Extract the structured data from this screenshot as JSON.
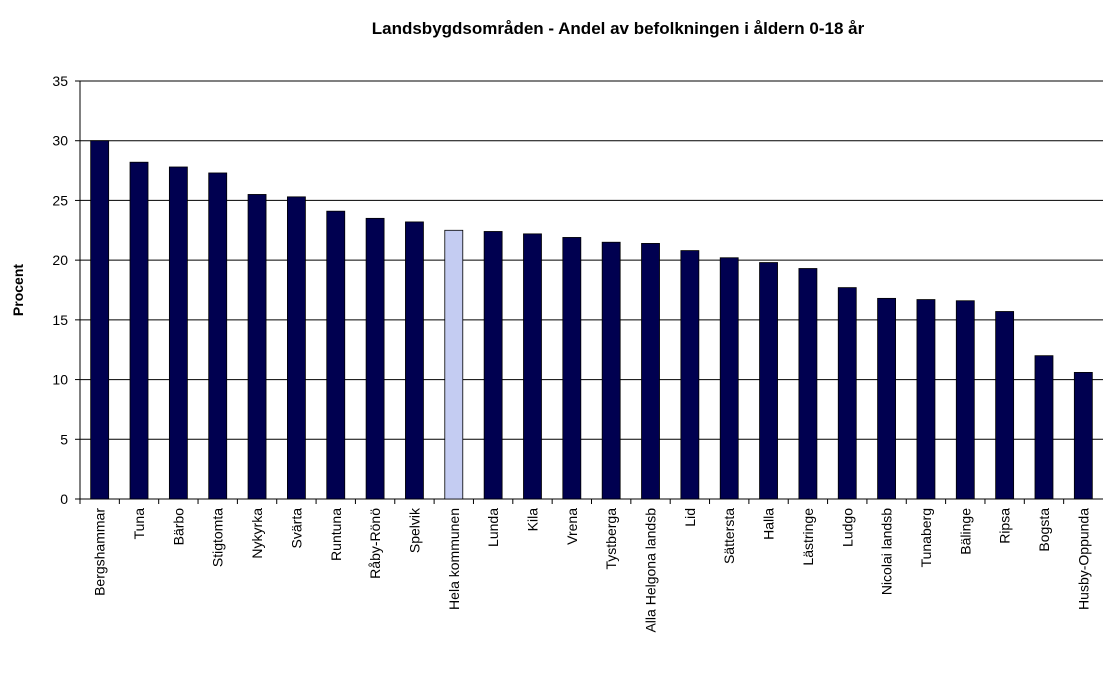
{
  "chart_data": {
    "type": "bar",
    "title": "Landsbygdsområden  - Andel av befolkningen i åldern 0-18 år",
    "y_label": "Procent",
    "categories": [
      "Bergshammar",
      "Tuna",
      "Bärbo",
      "Stigtomta",
      "Nykyrka",
      "Svärta",
      "Runtuna",
      "Råby-Rönö",
      "Spelvik",
      "Hela kommunen",
      "Lunda",
      "Kila",
      "Vrena",
      "Tystberga",
      "Alla Helgona landsb",
      "Lid",
      "Sättersta",
      "Halla",
      "Lästringe",
      "Ludgo",
      "Nicolai landsb",
      "Tunaberg",
      "Bälinge",
      "Ripsa",
      "Bogsta",
      "Husby-Oppunda"
    ],
    "values": [
      30.0,
      28.2,
      27.8,
      27.3,
      25.5,
      25.3,
      24.1,
      23.5,
      23.2,
      22.5,
      22.4,
      22.2,
      21.9,
      21.5,
      21.4,
      20.8,
      20.2,
      19.8,
      19.3,
      17.7,
      16.8,
      16.7,
      16.6,
      15.7,
      12.0,
      10.6
    ],
    "colors": [
      "#000050",
      "#000050",
      "#000050",
      "#000050",
      "#000050",
      "#000050",
      "#000050",
      "#000050",
      "#000050",
      "#c4ccf2",
      "#000050",
      "#000050",
      "#000050",
      "#000050",
      "#000050",
      "#000050",
      "#000050",
      "#000050",
      "#000050",
      "#000050",
      "#000050",
      "#000050",
      "#000050",
      "#000050",
      "#000050",
      "#000050"
    ],
    "ylim": [
      0,
      35
    ],
    "yticks": [
      0,
      5,
      10,
      15,
      20,
      25,
      30,
      35
    ],
    "grid": true
  }
}
